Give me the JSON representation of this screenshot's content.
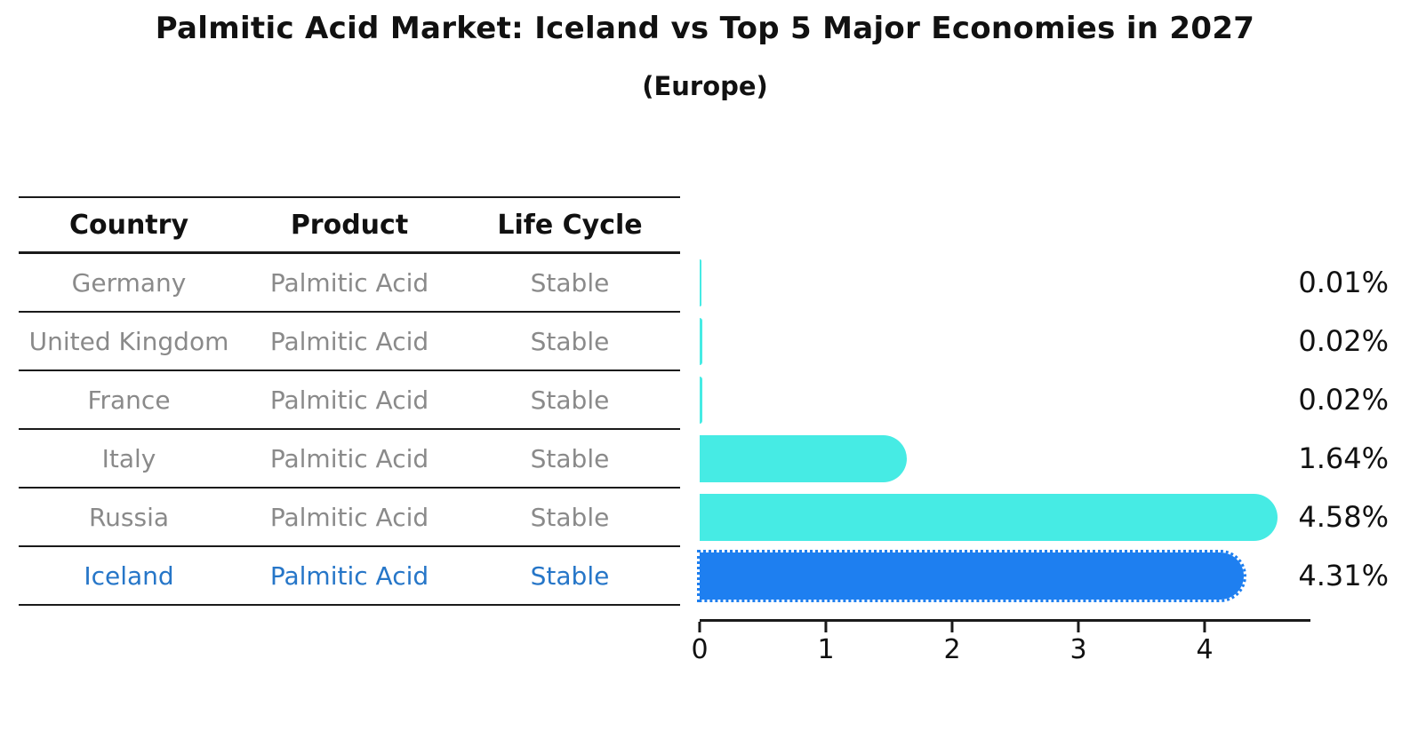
{
  "chart_data": {
    "type": "bar",
    "orientation": "horizontal",
    "title": "Palmitic Acid Market: Iceland vs Top 5 Major Economies in 2027",
    "subtitle": "(Europe)",
    "categories": [
      "Germany",
      "United Kingdom",
      "France",
      "Italy",
      "Russia",
      "Iceland"
    ],
    "values": [
      0.01,
      0.02,
      0.02,
      1.64,
      4.58,
      4.31
    ],
    "value_labels": [
      "0.01%",
      "0.02%",
      "0.02%",
      "1.64%",
      "4.58%",
      "4.31%"
    ],
    "xlabel": "",
    "ylabel": "",
    "xticks": [
      0,
      1,
      2,
      3,
      4
    ],
    "xlim": [
      0,
      4.84
    ],
    "grid": false,
    "legend": false,
    "bar_color": "#46EBE4",
    "highlight_color": "#1E7FF0",
    "highlight_index": 5,
    "highlight_style": "dotted-outline"
  },
  "table": {
    "headers": [
      "Country",
      "Product",
      "Life Cycle"
    ],
    "rows": [
      {
        "country": "Germany",
        "product": "Palmitic Acid",
        "life_cycle": "Stable",
        "highlighted": false
      },
      {
        "country": "United Kingdom",
        "product": "Palmitic Acid",
        "life_cycle": "Stable",
        "highlighted": false
      },
      {
        "country": "France",
        "product": "Palmitic Acid",
        "life_cycle": "Stable",
        "highlighted": false
      },
      {
        "country": "Italy",
        "product": "Palmitic Acid",
        "life_cycle": "Stable",
        "highlighted": false
      },
      {
        "country": "Russia",
        "product": "Palmitic Acid",
        "life_cycle": "Stable",
        "highlighted": false
      },
      {
        "country": "Iceland",
        "product": "Palmitic Acid",
        "life_cycle": "Stable",
        "highlighted": true
      }
    ]
  },
  "colors": {
    "highlight_text": "#2676C8",
    "row_text": "#8a8a8a",
    "header_text": "#111111",
    "axis_color": "#1a1a1a"
  }
}
